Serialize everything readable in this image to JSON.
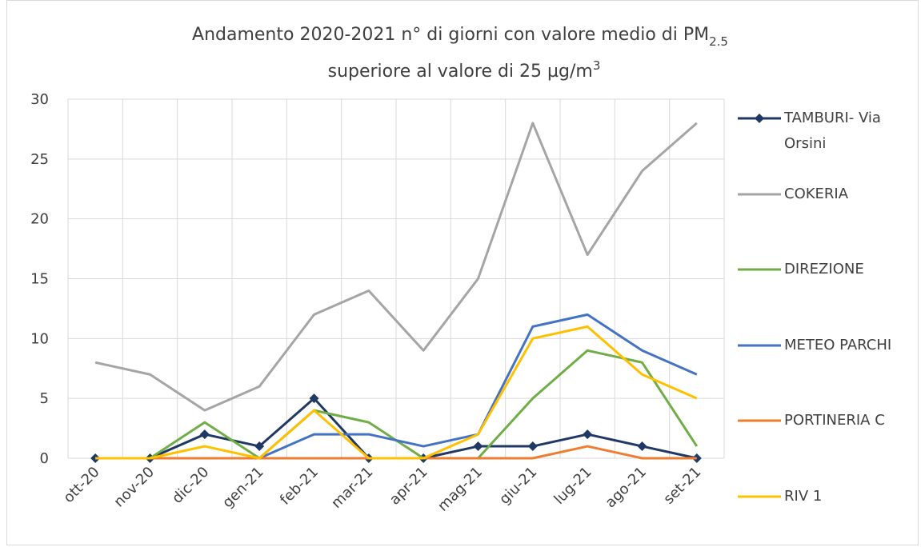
{
  "chart_data": {
    "type": "line",
    "title": {
      "line1": "Andamento 2020-2021 n° di giorni con valore medio di PM",
      "line1_sub": "2.5",
      "line2": "superiore al valore di 25 µg/m",
      "line2_sup": "3"
    },
    "categories": [
      "ott-20",
      "nov-20",
      "dic-20",
      "gen-21",
      "feb-21",
      "mar-21",
      "apr-21",
      "mag-21",
      "giu-21",
      "lug-21",
      "ago-21",
      "set-21"
    ],
    "series": [
      {
        "name": "TAMBURI- Via Orsini",
        "color": "#1f3864",
        "marker": "diamond",
        "values": [
          0,
          0,
          2,
          1,
          5,
          0,
          0,
          1,
          1,
          2,
          1,
          0
        ]
      },
      {
        "name": "COKERIA",
        "color": "#a5a5a5",
        "values": [
          8,
          7,
          4,
          6,
          12,
          14,
          9,
          15,
          28,
          17,
          24,
          28
        ]
      },
      {
        "name": "DIREZIONE",
        "color": "#70ad47",
        "values": [
          0,
          0,
          3,
          0,
          4,
          3,
          0,
          0,
          5,
          9,
          8,
          1
        ]
      },
      {
        "name": "METEO PARCHI",
        "color": "#4472c4",
        "values": [
          0,
          0,
          0,
          0,
          2,
          2,
          1,
          2,
          11,
          12,
          9,
          7
        ]
      },
      {
        "name": "PORTINERIA C",
        "color": "#ed7d31",
        "values": [
          0,
          0,
          0,
          0,
          0,
          0,
          0,
          0,
          0,
          1,
          0,
          0
        ]
      },
      {
        "name": "RIV 1",
        "color": "#ffc000",
        "values": [
          0,
          0,
          1,
          0,
          4,
          0,
          0,
          2,
          10,
          11,
          7,
          5
        ]
      }
    ],
    "ylim": [
      0,
      30
    ],
    "yticks": [
      0,
      5,
      10,
      15,
      20,
      25,
      30
    ],
    "grid": true,
    "legend": "right"
  }
}
